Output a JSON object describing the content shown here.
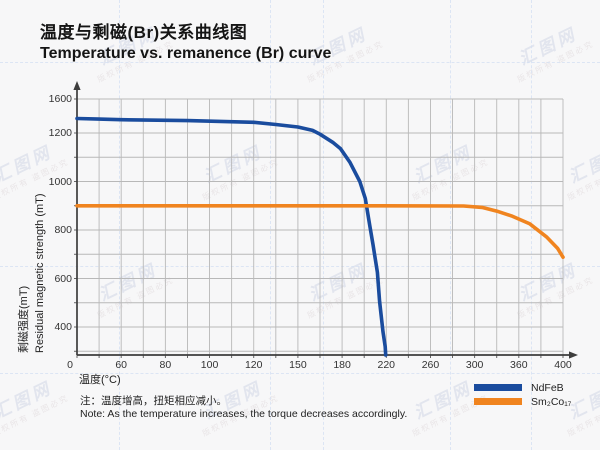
{
  "page": {
    "background": "#f7f7f8"
  },
  "title": {
    "zh": "温度与剩磁(Br)关系曲线图",
    "en": "Temperature vs. remanence (Br) curve"
  },
  "chart_data": {
    "type": "line",
    "title": "温度与剩磁(Br)关系曲线图 / Temperature vs. remanence (Br) curve",
    "xlabel": "温度(°C)",
    "ylabel_zh": "剩磁强度(mT)",
    "ylabel_en": "Residual magnetic strength (mT)",
    "x_ticks": [
      0,
      60,
      80,
      100,
      120,
      150,
      180,
      220,
      260,
      300,
      360,
      400
    ],
    "y_ticks": [
      1600,
      1200,
      1000,
      800,
      600,
      400
    ],
    "origin_label": "0",
    "ylim": [
      0,
      1600
    ],
    "grid": true,
    "legend_position": "bottom-right",
    "axis_note": "x ticks evenly spaced (non-linear temperature steps); y compressed above 1200 and below 400",
    "series": [
      {
        "name": "NdFeB",
        "color": "#1a4c9e",
        "points": [
          [
            0,
            1370
          ],
          [
            30,
            1364
          ],
          [
            60,
            1356
          ],
          [
            90,
            1346
          ],
          [
            120,
            1326
          ],
          [
            135,
            1300
          ],
          [
            150,
            1270
          ],
          [
            160,
            1230
          ],
          [
            165,
            1195
          ],
          [
            174,
            1160
          ],
          [
            179,
            1135
          ],
          [
            187,
            1080
          ],
          [
            196,
            1000
          ],
          [
            201,
            930
          ],
          [
            205,
            820
          ],
          [
            208,
            740
          ],
          [
            212,
            625
          ],
          [
            214,
            505
          ],
          [
            217,
            330
          ],
          [
            219,
            120
          ],
          [
            219.5,
            0
          ]
        ]
      },
      {
        "name": "Sm₂Co₁₇",
        "color": "#f0841f",
        "points": [
          [
            0,
            900
          ],
          [
            100,
            900
          ],
          [
            200,
            900
          ],
          [
            290,
            899
          ],
          [
            310,
            893
          ],
          [
            330,
            878
          ],
          [
            350,
            858
          ],
          [
            370,
            825
          ],
          [
            385,
            772
          ],
          [
            395,
            725
          ],
          [
            400,
            688
          ]
        ]
      }
    ]
  },
  "note": {
    "zh": "注：温度增高，扭矩相应减小。",
    "en": "Note: As the temperature increases, the torque decreases accordingly."
  },
  "watermark": {
    "logo": "汇图网",
    "caption": "版权所有 盗图必究"
  }
}
